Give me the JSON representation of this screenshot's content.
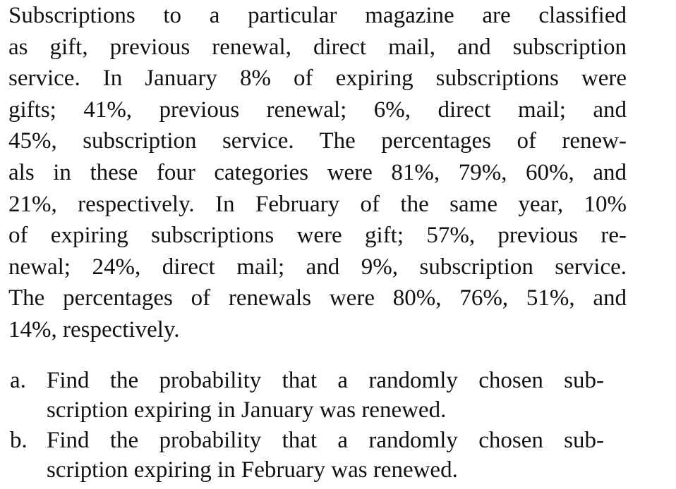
{
  "paragraph": {
    "lines": [
      "Subscriptions to a particular magazine are classified",
      "as gift, previous renewal, direct mail, and subscription",
      "service. In January 8% of expiring subscriptions were",
      "gifts; 41%, previous renewal; 6%, direct mail; and",
      "45%, subscription service. The percentages of renew-",
      "als in these four categories were 81%, 79%, 60%, and",
      "21%, respectively. In February of the same year, 10%",
      "of expiring subscriptions were gift; 57%, previous re-",
      "newal; 24%, direct mail; and 9%, subscription service.",
      "The percentages of renewals were 80%, 76%, 51%, and",
      "14%, respectively."
    ]
  },
  "questions": [
    {
      "label": "a.",
      "lines": [
        "Find the probability that a randomly chosen sub-",
        "scription expiring in January was renewed."
      ]
    },
    {
      "label": "b.",
      "lines": [
        "Find the probability that a randomly chosen sub-",
        "scription expiring in February was renewed."
      ]
    }
  ]
}
